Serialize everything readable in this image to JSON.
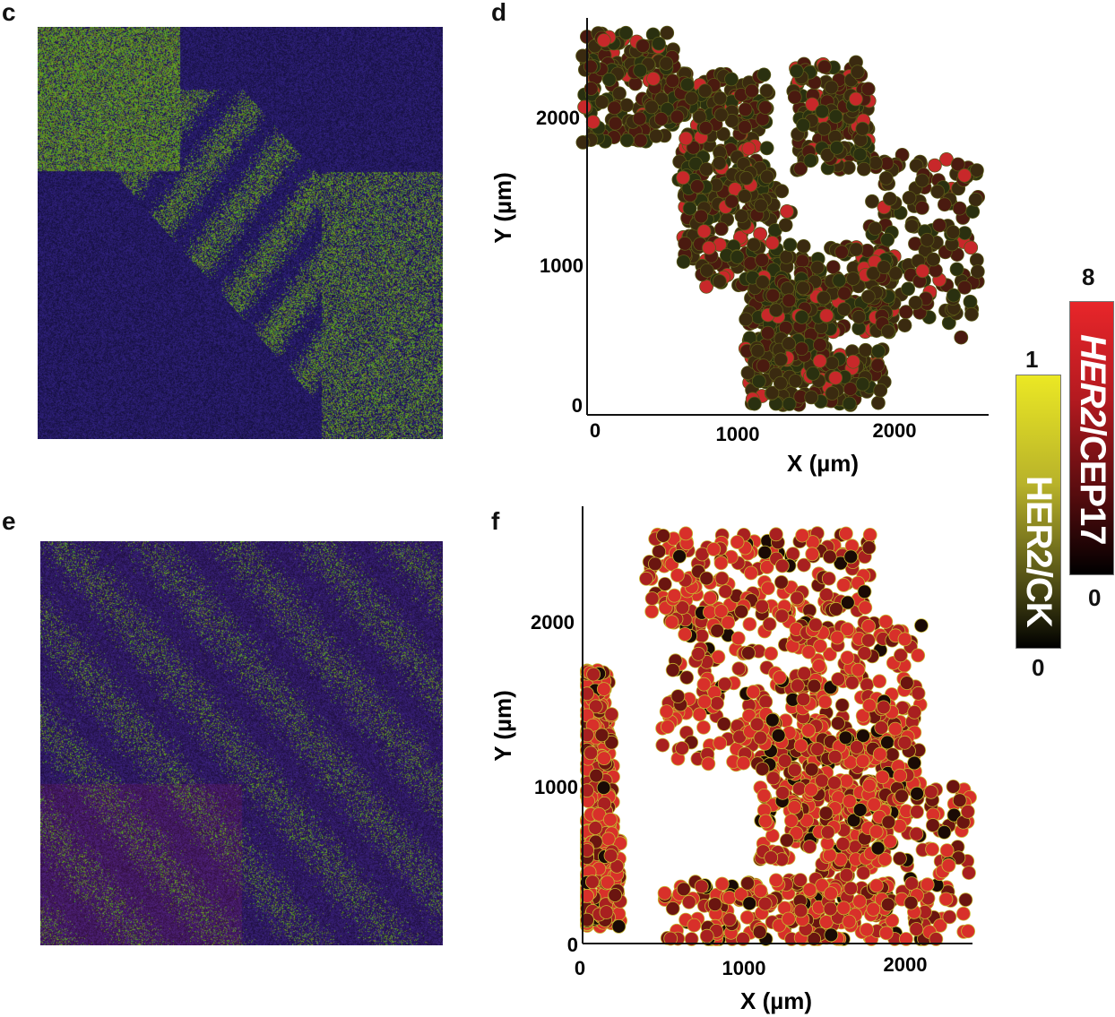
{
  "panels": {
    "c": {
      "label": "c"
    },
    "d": {
      "label": "d"
    },
    "e": {
      "label": "e"
    },
    "f": {
      "label": "f"
    }
  },
  "chart_data": [
    {
      "panel": "d",
      "type": "scatter",
      "xlabel": "X (µm)",
      "ylabel": "Y (µm)",
      "xticks": [
        "0",
        "1000",
        "2000"
      ],
      "yticks": [
        "0",
        "1000",
        "2000"
      ],
      "xlim": [
        0,
        2600
      ],
      "ylim": [
        0,
        2600
      ],
      "grid": false,
      "marker_color": "dark olive to red (HER2/CEP17 mostly low)"
    },
    {
      "panel": "f",
      "type": "scatter",
      "xlabel": "X (µm)",
      "ylabel": "Y (µm)",
      "xticks": [
        "0",
        "1000",
        "2000"
      ],
      "yticks": [
        "0",
        "1000",
        "2000"
      ],
      "xlim": [
        0,
        2400
      ],
      "ylim": [
        0,
        2500
      ],
      "grid": false,
      "marker_color": "red with yellow rims (HER2/CEP17 high)"
    }
  ],
  "colorbars": {
    "her2_ck": {
      "name": "HER2/CK",
      "max": "1",
      "min": "0",
      "colors": [
        "#000000",
        "#e8e620"
      ]
    },
    "her2_cep17": {
      "name_part1": "HER2",
      "name_part2": "/CEP17",
      "max": "8",
      "min": "0",
      "colors": [
        "#000000",
        "#e8262a"
      ]
    }
  }
}
